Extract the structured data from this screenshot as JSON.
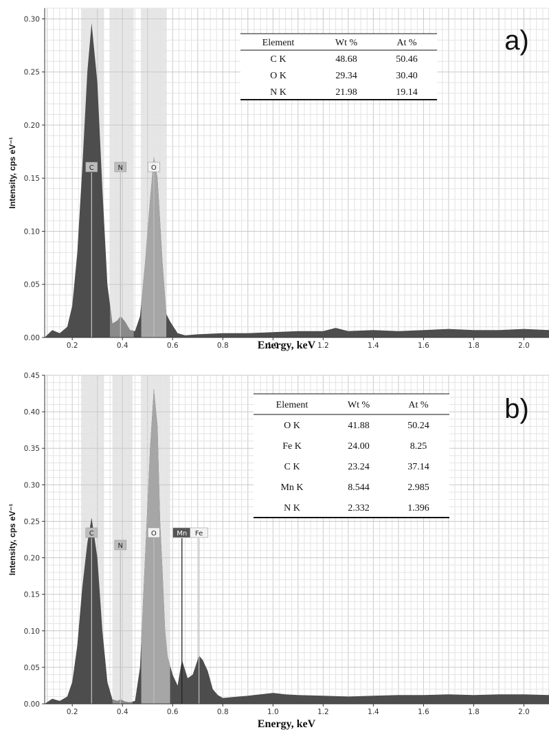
{
  "chart_data": [
    {
      "panel": "a)",
      "type": "area",
      "xlabel": "Energy, keV",
      "ylabel": "Intensity, cps eV⁻¹",
      "xlim": [
        0.09,
        2.1
      ],
      "ylim": [
        0,
        0.31
      ],
      "x_ticks": [
        "0.2",
        "0.4",
        "0.6",
        "0.8",
        "1.0",
        "1.2",
        "1.4",
        "1.6",
        "1.8",
        "2.0"
      ],
      "y_ticks": [
        "0.00",
        "0.05",
        "0.10",
        "0.15",
        "0.20",
        "0.25",
        "0.30"
      ],
      "grid": true,
      "element_peaks": [
        {
          "label": "C",
          "energy": 0.277,
          "height": 0.296
        },
        {
          "label": "N",
          "energy": 0.392,
          "height": 0.018
        },
        {
          "label": "O",
          "energy": 0.525,
          "height": 0.17
        }
      ],
      "highlight_bands": [
        [
          0.235,
          0.325
        ],
        [
          0.35,
          0.445
        ],
        [
          0.475,
          0.575
        ]
      ],
      "spectrum": {
        "x": [
          0.09,
          0.12,
          0.15,
          0.18,
          0.2,
          0.22,
          0.24,
          0.26,
          0.277,
          0.3,
          0.32,
          0.34,
          0.36,
          0.38,
          0.392,
          0.41,
          0.43,
          0.45,
          0.47,
          0.49,
          0.51,
          0.525,
          0.54,
          0.56,
          0.575,
          0.59,
          0.62,
          0.65,
          0.7,
          0.8,
          0.9,
          1.0,
          1.1,
          1.2,
          1.25,
          1.3,
          1.4,
          1.5,
          1.6,
          1.7,
          1.8,
          1.9,
          2.0,
          2.1
        ],
        "y": [
          0.0,
          0.007,
          0.004,
          0.01,
          0.03,
          0.08,
          0.16,
          0.25,
          0.296,
          0.24,
          0.14,
          0.05,
          0.013,
          0.016,
          0.02,
          0.015,
          0.007,
          0.006,
          0.02,
          0.07,
          0.13,
          0.17,
          0.15,
          0.07,
          0.022,
          0.015,
          0.004,
          0.002,
          0.003,
          0.004,
          0.004,
          0.005,
          0.006,
          0.006,
          0.009,
          0.006,
          0.007,
          0.006,
          0.007,
          0.008,
          0.007,
          0.007,
          0.008,
          0.007
        ]
      },
      "table": {
        "headers": [
          "Element",
          "Wt %",
          "At %"
        ],
        "rows": [
          [
            "C K",
            "48.68",
            "50.46"
          ],
          [
            "O K",
            "29.34",
            "30.40"
          ],
          [
            "N K",
            "21.98",
            "19.14"
          ]
        ]
      }
    },
    {
      "panel": "b)",
      "type": "area",
      "xlabel": "Energy, keV",
      "ylabel": "Intensity, cps eV⁻¹",
      "xlim": [
        0.09,
        2.1
      ],
      "ylim": [
        0,
        0.45
      ],
      "x_ticks": [
        "0.2",
        "0.4",
        "0.6",
        "0.8",
        "1.0",
        "1.2",
        "1.4",
        "1.6",
        "1.8",
        "2.0"
      ],
      "y_ticks": [
        "0.00",
        "0.05",
        "0.10",
        "0.15",
        "0.20",
        "0.25",
        "0.30",
        "0.35",
        "0.40",
        "0.45"
      ],
      "grid": true,
      "element_peaks": [
        {
          "label": "C",
          "energy": 0.277,
          "height": 0.255
        },
        {
          "label": "N",
          "energy": 0.392,
          "height": 0.01
        },
        {
          "label": "O",
          "energy": 0.525,
          "height": 0.432
        },
        {
          "label": "Mn",
          "energy": 0.637,
          "height": 0.06
        },
        {
          "label": "Fe",
          "energy": 0.705,
          "height": 0.066
        }
      ],
      "highlight_bands": [
        [
          0.235,
          0.325
        ],
        [
          0.36,
          0.44
        ],
        [
          0.475,
          0.59
        ]
      ],
      "spectrum": {
        "x": [
          0.09,
          0.12,
          0.15,
          0.18,
          0.2,
          0.22,
          0.24,
          0.26,
          0.277,
          0.3,
          0.32,
          0.34,
          0.36,
          0.38,
          0.392,
          0.41,
          0.43,
          0.45,
          0.47,
          0.49,
          0.51,
          0.525,
          0.54,
          0.55,
          0.56,
          0.57,
          0.58,
          0.6,
          0.62,
          0.637,
          0.66,
          0.68,
          0.705,
          0.72,
          0.74,
          0.76,
          0.78,
          0.8,
          0.9,
          1.0,
          1.05,
          1.1,
          1.2,
          1.3,
          1.4,
          1.5,
          1.6,
          1.7,
          1.8,
          1.9,
          2.0,
          2.1
        ],
        "y": [
          0.0,
          0.007,
          0.004,
          0.01,
          0.03,
          0.08,
          0.16,
          0.22,
          0.255,
          0.2,
          0.1,
          0.03,
          0.006,
          0.004,
          0.006,
          0.003,
          0.002,
          0.004,
          0.05,
          0.2,
          0.35,
          0.432,
          0.38,
          0.25,
          0.18,
          0.1,
          0.065,
          0.04,
          0.025,
          0.06,
          0.035,
          0.04,
          0.066,
          0.06,
          0.045,
          0.02,
          0.012,
          0.008,
          0.011,
          0.015,
          0.013,
          0.012,
          0.011,
          0.01,
          0.011,
          0.012,
          0.012,
          0.013,
          0.012,
          0.013,
          0.013,
          0.012
        ]
      },
      "table": {
        "headers": [
          "Element",
          "Wt %",
          "At %"
        ],
        "rows": [
          [
            "O K",
            "41.88",
            "50.24"
          ],
          [
            "Fe K",
            "24.00",
            "8.25"
          ],
          [
            "C K",
            "23.24",
            "37.14"
          ],
          [
            "Mn K",
            "8.544",
            "2.985"
          ],
          [
            "N K",
            "2.332",
            "1.396"
          ]
        ]
      }
    }
  ]
}
